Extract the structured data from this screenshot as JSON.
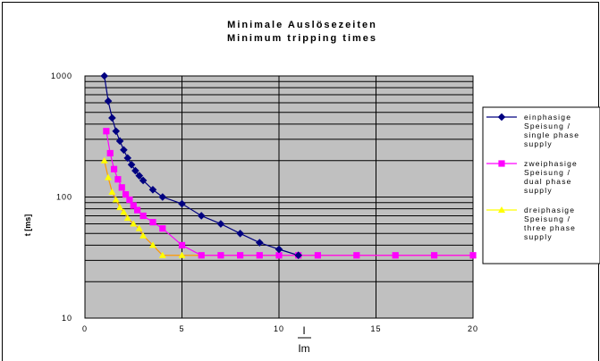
{
  "chart_data": {
    "type": "line",
    "title": "Minimale Auslösezeiten",
    "subtitle": "Minimum tripping times",
    "xlabel_top": "I",
    "xlabel_bottom": "Im",
    "ylabel": "t [ms]",
    "x_ticks": [
      0,
      5,
      10,
      15,
      20
    ],
    "y_ticks": [
      10,
      100,
      1000
    ],
    "y_tick_labels": [
      "10",
      "100",
      "1000"
    ],
    "x_tick_labels": [
      "0",
      "5",
      "10",
      "15",
      "20"
    ],
    "xlim": [
      0,
      20
    ],
    "ylim": [
      10,
      1000
    ],
    "y_scale": "log",
    "grid": true,
    "legend_position": "right",
    "series": [
      {
        "name": [
          "einphasige",
          "Speisung /",
          "single phase",
          "supply"
        ],
        "color": "#000080",
        "marker": "diamond",
        "x": [
          1.0,
          1.2,
          1.4,
          1.6,
          1.8,
          2.0,
          2.2,
          2.4,
          2.6,
          2.8,
          3.0,
          3.5,
          4.0,
          5.0,
          6.0,
          7.0,
          8.0,
          9.0,
          10.0,
          11.0
        ],
        "y": [
          1000,
          620,
          450,
          350,
          290,
          245,
          210,
          185,
          165,
          150,
          137,
          115,
          100,
          88,
          70,
          60,
          50,
          42,
          37,
          33
        ]
      },
      {
        "name": [
          "zweiphasige",
          "Speisung /",
          "dual phase",
          "supply"
        ],
        "color": "#ff00ff",
        "marker": "square",
        "x": [
          1.1,
          1.3,
          1.5,
          1.7,
          1.9,
          2.1,
          2.3,
          2.5,
          2.7,
          3.0,
          3.5,
          4.0,
          5.0,
          6.0,
          7.0,
          8.0,
          9.0,
          10.0,
          11.0,
          12.0,
          14.0,
          16.0,
          18.0,
          20.0
        ],
        "y": [
          350,
          230,
          170,
          140,
          120,
          105,
          95,
          85,
          78,
          70,
          62,
          55,
          40,
          33,
          33,
          33,
          33,
          33,
          33,
          33,
          33,
          33,
          33,
          33
        ]
      },
      {
        "name": [
          "dreiphasige",
          "Speisung /",
          "three phase",
          "supply"
        ],
        "color": "#ffff00",
        "marker": "triangle",
        "x": [
          1.0,
          1.2,
          1.4,
          1.6,
          1.8,
          2.0,
          2.2,
          2.5,
          2.8,
          3.0,
          3.5,
          4.0,
          5.0,
          6.0,
          7.0,
          8.0,
          9.0,
          10.0,
          11.0,
          12.0,
          14.0,
          16.0,
          18.0,
          20.0
        ],
        "y": [
          200,
          145,
          110,
          95,
          82,
          75,
          67,
          60,
          55,
          48,
          40,
          33,
          33,
          33,
          33,
          33,
          33,
          33,
          33,
          33,
          33,
          33,
          33,
          33
        ]
      }
    ]
  }
}
